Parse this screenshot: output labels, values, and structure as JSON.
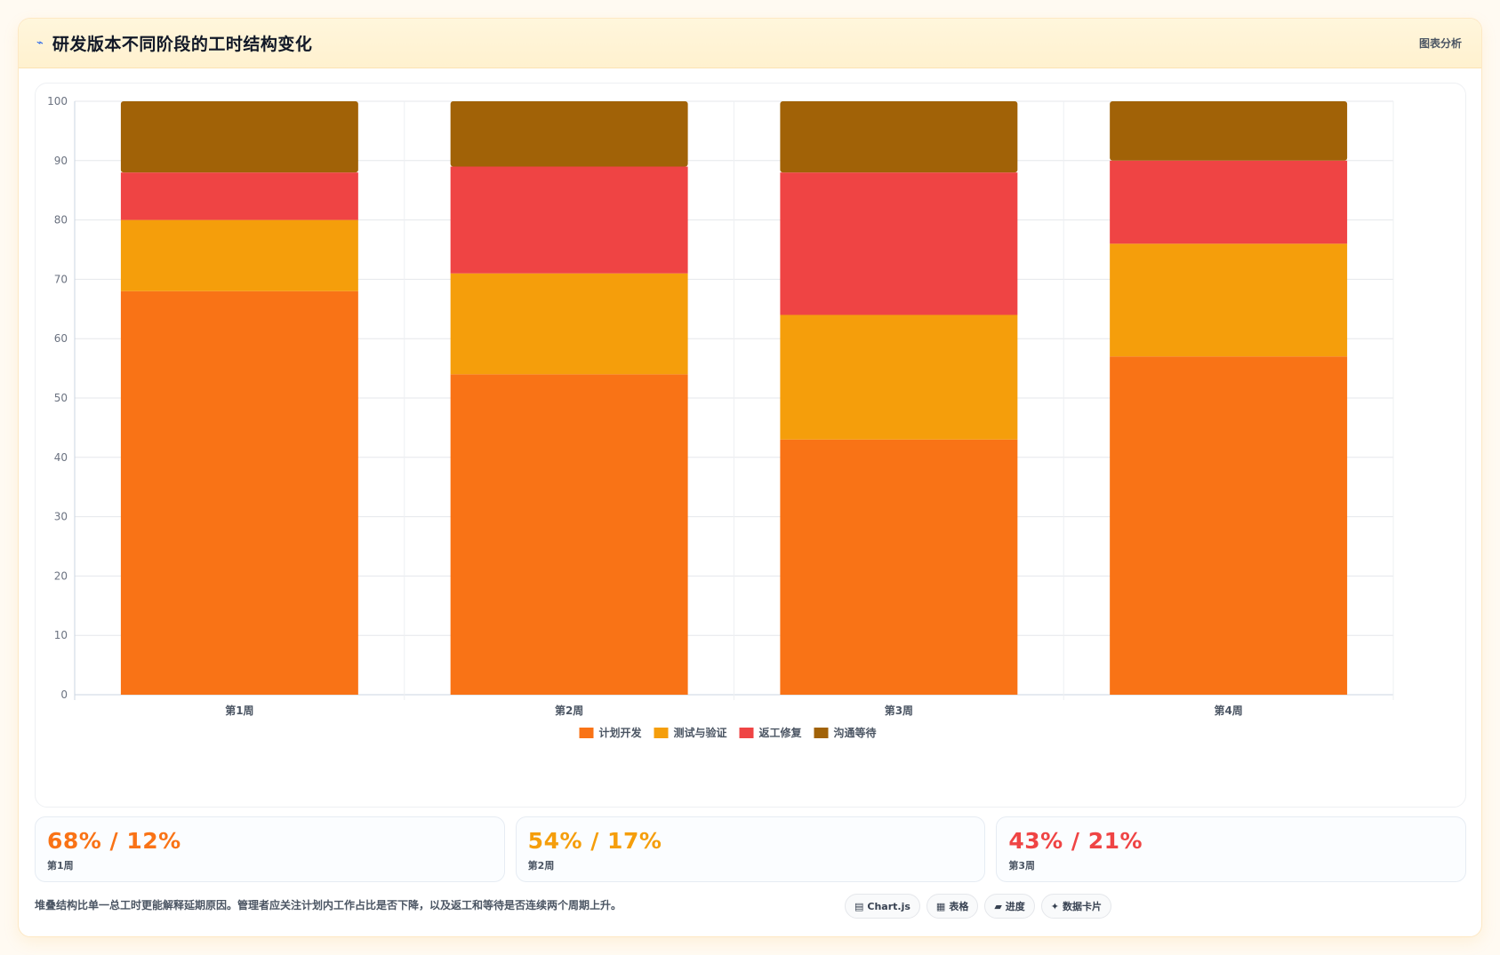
{
  "header": {
    "icon": "trend-icon",
    "icon_glyph": "⌁",
    "title": "研发版本不同阶段的工时结构变化",
    "link": "图表分析"
  },
  "chart_data": {
    "type": "bar",
    "stacked": true,
    "categories": [
      "第1周",
      "第2周",
      "第3周",
      "第4周"
    ],
    "series": [
      {
        "name": "计划开发",
        "color": "#f97316",
        "values": [
          68,
          54,
          43,
          57
        ]
      },
      {
        "name": "测试与验证",
        "color": "#f59e0b",
        "values": [
          12,
          17,
          21,
          19
        ]
      },
      {
        "name": "返工修复",
        "color": "#ef4444",
        "values": [
          8,
          18,
          24,
          14
        ]
      },
      {
        "name": "沟通等待",
        "color": "#a16207",
        "values": [
          12,
          11,
          12,
          10
        ]
      }
    ],
    "ylim": [
      0,
      100
    ],
    "yticks": [
      0,
      10,
      20,
      30,
      40,
      50,
      60,
      70,
      80,
      90,
      100
    ],
    "grid": true,
    "legend": "bottom-center"
  },
  "stats": [
    {
      "value": "68% / 12%",
      "label": "第1周",
      "color": "#f97316"
    },
    {
      "value": "54% / 17%",
      "label": "第2周",
      "color": "#f59e0b"
    },
    {
      "value": "43% / 21%",
      "label": "第3周",
      "color": "#ef4444"
    }
  ],
  "footer": {
    "text": "堆叠结构比单一总工时更能解释延期原因。管理者应关注计划内工作占比是否下降，以及返工和等待是否连续两个周期上升。",
    "tags": [
      {
        "icon": "chart-icon",
        "glyph": "▤",
        "label": "Chart.js"
      },
      {
        "icon": "table-icon",
        "glyph": "▦",
        "label": "表格"
      },
      {
        "icon": "progress-icon",
        "glyph": "▰",
        "label": "进度"
      },
      {
        "icon": "sparkle-icon",
        "glyph": "✦",
        "label": "数据卡片"
      }
    ]
  }
}
